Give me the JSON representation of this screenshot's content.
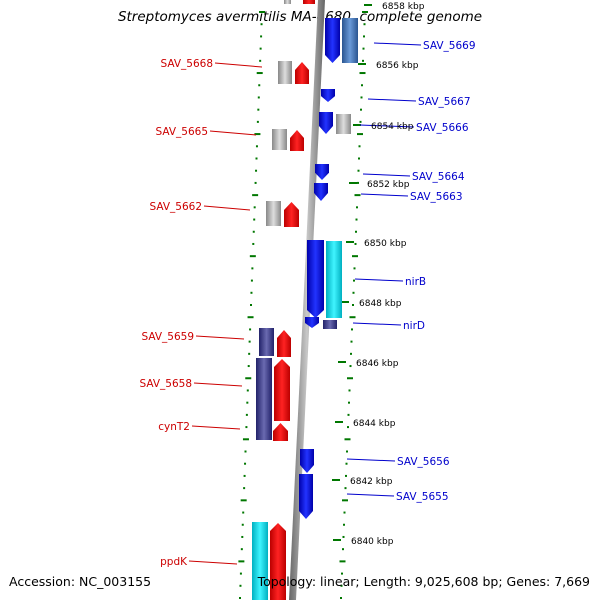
{
  "title": "Streptomyces avermitilis MA-4680, complete genome",
  "footer": {
    "accession": "Accession: NC_003155",
    "summary": "Topology: linear; Length: 9,025,608 bp; Genes: 7,669"
  },
  "scale_labels": [
    "6858 kbp",
    "6856 kbp",
    "6854 kbp",
    "6852 kbp",
    "6850 kbp",
    "6848 kbp",
    "6846 kbp",
    "6844 kbp",
    "6842 kbp",
    "6840 kbp"
  ],
  "genes_reverse": [
    "SAV_5668",
    "SAV_5665",
    "SAV_5662",
    "SAV_5659",
    "SAV_5658",
    "cynT2",
    "ppdK"
  ],
  "genes_forward": [
    "SAV_5669",
    "SAV_5667",
    "SAV_5666",
    "SAV_5664",
    "SAV_5663",
    "nirB",
    "nirD",
    "SAV_5656",
    "SAV_5655"
  ],
  "colors": {
    "reverse_label": "#cc0000",
    "forward_label": "#0000cc",
    "tick": "#007700",
    "backbone": "#888888",
    "forward_gene": "#0000ee",
    "reverse_gene": "#ee0000",
    "cyan_gene": "#00e0f0",
    "navy_gene": "#3c3c8c",
    "grey_gene": "#aaaaaa",
    "steel_gene": "#4477bb"
  }
}
